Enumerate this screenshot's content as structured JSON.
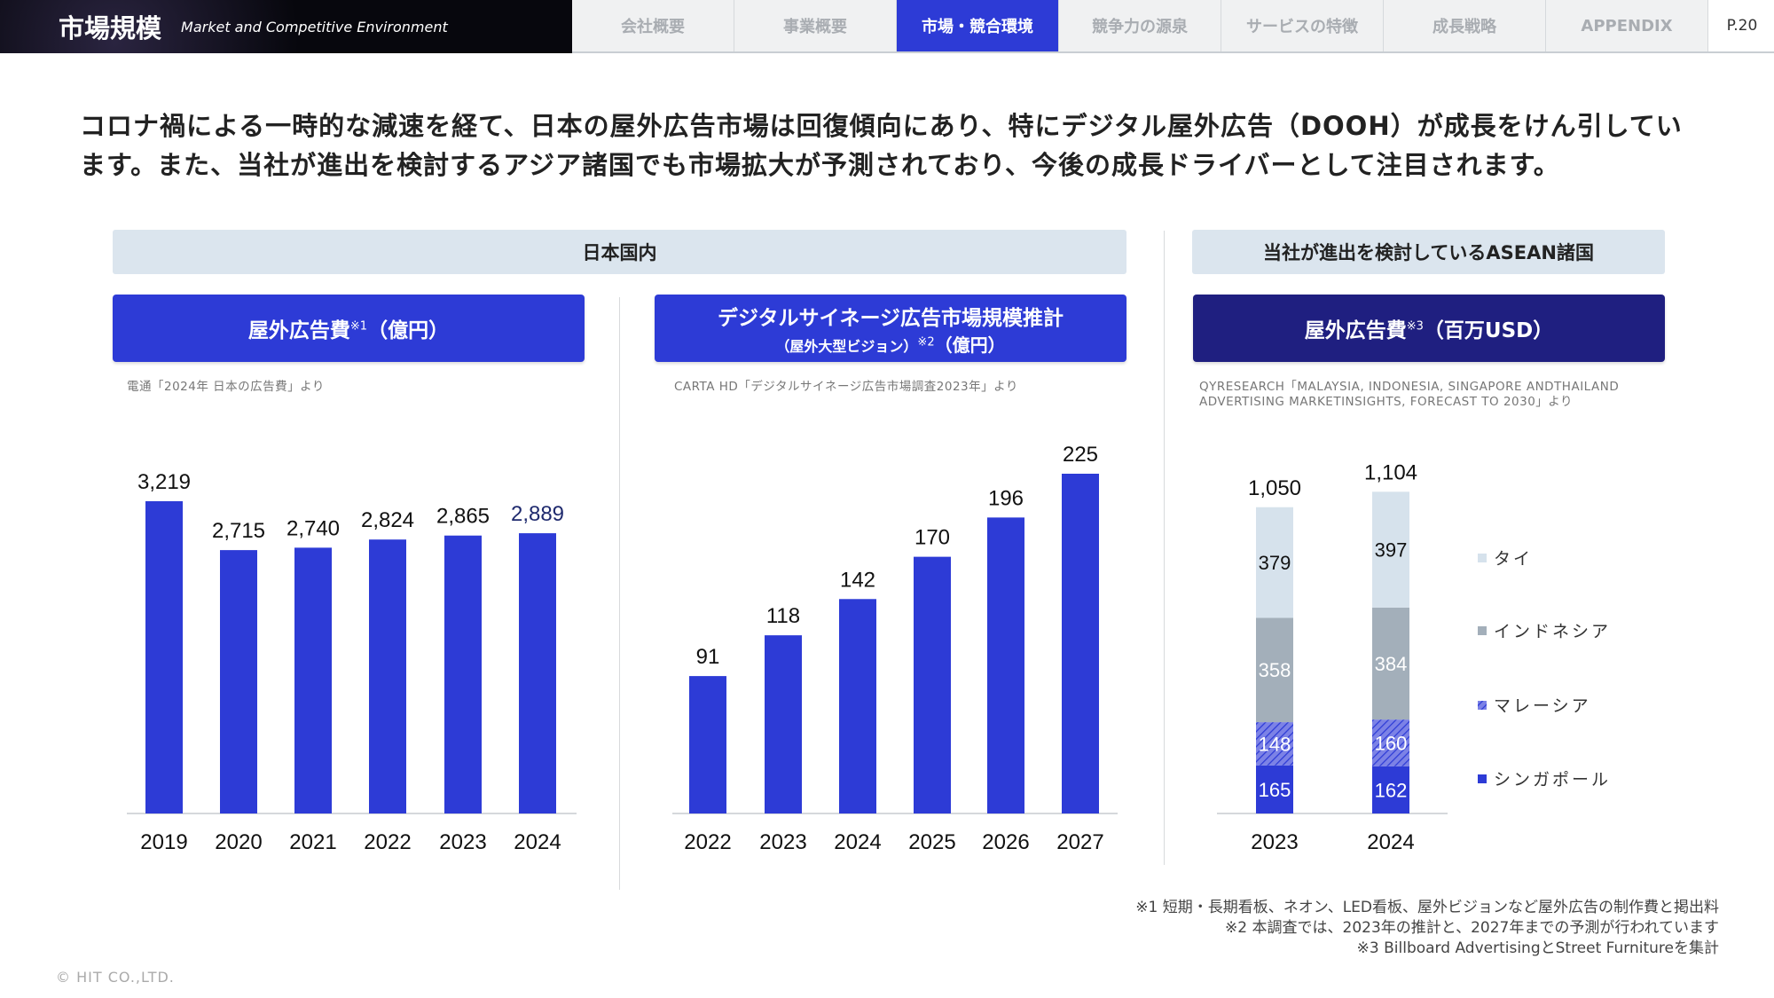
{
  "header": {
    "title": "市場規模",
    "subtitle": "Market and Competitive Environment",
    "tabs": [
      {
        "label": "会社概要"
      },
      {
        "label": "事業概要"
      },
      {
        "label": "市場・競合環境",
        "active": true
      },
      {
        "label": "競争力の源泉"
      },
      {
        "label": "サービスの特徴"
      },
      {
        "label": "成長戦略"
      },
      {
        "label": "APPENDIX"
      }
    ],
    "page": "P.20"
  },
  "lead": "コロナ禍による一時的な減速を経て、日本の屋外広告市場は回復傾向にあり、特にデジタル屋外広告（DOOH）が成長をけん引しています。また、当社が進出を検討するアジア諸国でも市場拡大が予測されており、今後の成長ドライバーとして注目されます。",
  "sections": {
    "japan": "日本国内",
    "asean": "当社が進出を検討しているASEAN諸国"
  },
  "colors": {
    "blue": "#2d3bd6",
    "navy": "#1f1f80",
    "thai": "#d6e2ec",
    "indonesia": "#a3afba",
    "malaysia": "#6a70e0",
    "singapore": "#2d3bd6"
  },
  "chart_titles": [
    {
      "main": "屋外広告費",
      "note": "※1",
      "unit": "（億円）",
      "source": "電通「2024年 日本の広告費」より"
    },
    {
      "main": "デジタルサイネージ広告市場規模推計",
      "sub": "（屋外大型ビジョン）",
      "note": "※2",
      "unit": "（億円）",
      "source": "CARTA HD「デジタルサイネージ広告市場調査2023年」より"
    },
    {
      "main": "屋外広告費",
      "note": "※3",
      "unit": "（百万USD）",
      "source": "QYRESEARCH「MALAYSIA, INDONESIA, SINGAPORE ANDTHAILAND ADVERTISING MARKETINSIGHTS, FORECAST TO 2030」より"
    }
  ],
  "chart_data": [
    {
      "type": "bar",
      "categories": [
        "2019",
        "2020",
        "2021",
        "2022",
        "2023",
        "2024"
      ],
      "values": [
        3219,
        2715,
        2740,
        2824,
        2865,
        2889
      ],
      "labels": [
        "3,219",
        "2,715",
        "2,740",
        "2,824",
        "2,865",
        "2,889"
      ]
    },
    {
      "type": "bar",
      "categories": [
        "2022",
        "2023",
        "2024",
        "2025",
        "2026",
        "2027"
      ],
      "values": [
        91,
        118,
        142,
        170,
        196,
        225
      ],
      "labels": [
        "91",
        "118",
        "142",
        "170",
        "196",
        "225"
      ]
    },
    {
      "type": "bar",
      "stacked": true,
      "categories": [
        "2023",
        "2024"
      ],
      "series": [
        {
          "name": "シンガポール",
          "values": [
            165,
            162
          ]
        },
        {
          "name": "マレーシア",
          "values": [
            148,
            160
          ]
        },
        {
          "name": "インドネシア",
          "values": [
            358,
            384
          ]
        },
        {
          "name": "タイ",
          "values": [
            379,
            397
          ]
        }
      ],
      "totals": [
        "1,050",
        "1,104"
      ],
      "legend": [
        "タイ",
        "インドネシア",
        "マレーシア",
        "シンガポール"
      ],
      "legend_position": "right"
    }
  ],
  "footnotes": [
    "※1 短期・長期看板、ネオン、LED看板、屋外ビジョンなど屋外広告の制作費と掲出料",
    "※2  本調査では、2023年の推計と、2027年までの予測が行われています",
    "※3 Billboard AdvertisingとStreet Furnitureを集計"
  ],
  "copyright": "© HIT CO.,LTD."
}
